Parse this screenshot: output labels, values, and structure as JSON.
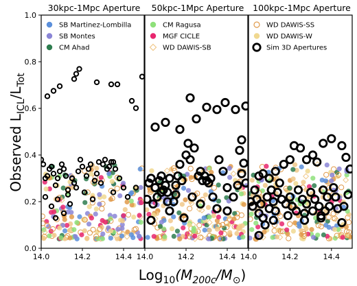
{
  "chart_data": {
    "type": "scatter",
    "ylabel_main": "Observed L",
    "ylabel_sub": "ICL",
    "ylabel_mid": "/L",
    "ylabel_sub2": "Tot",
    "xlabel_prefix": "Log",
    "xlabel_sub": "10",
    "xlabel_body": "(M",
    "xlabel_sub2": "200c",
    "xlabel_mid": "/M",
    "xlabel_sub3": "⊙",
    "xlabel_suffix": ")",
    "ylim": [
      0.0,
      1.0
    ],
    "xlim": [
      14.0,
      14.5
    ],
    "yticks": [
      "0.0",
      "0.2",
      "0.4",
      "0.6",
      "0.8",
      "1.0"
    ],
    "xticks": [
      "14.0",
      "14.2",
      "14.4"
    ],
    "grid": false,
    "panels": [
      {
        "title": "30kpc-1Mpc Aperture",
        "legend": [
          {
            "name": "SB Martinez-Lombilla",
            "color": "#5b8fdb",
            "marker": "filled"
          },
          {
            "name": "SB Montes",
            "color": "#8a85d6",
            "marker": "filled"
          },
          {
            "name": "CM Ahad",
            "color": "#2e7d4f",
            "marker": "filled"
          }
        ],
        "sim": [
          [
            14.03,
            0.652
          ],
          [
            14.06,
            0.675
          ],
          [
            14.09,
            0.695
          ],
          [
            14.16,
            0.726
          ],
          [
            14.17,
            0.748
          ],
          [
            14.185,
            0.769
          ],
          [
            14.27,
            0.712
          ],
          [
            14.34,
            0.703
          ],
          [
            14.37,
            0.703
          ],
          [
            14.44,
            0.632
          ],
          [
            14.46,
            0.601
          ],
          [
            14.49,
            0.736
          ],
          [
            14.0,
            0.38
          ],
          [
            14.01,
            0.36
          ],
          [
            14.02,
            0.3
          ],
          [
            14.03,
            0.31
          ],
          [
            14.04,
            0.34
          ],
          [
            14.05,
            0.35
          ],
          [
            14.06,
            0.32
          ],
          [
            14.07,
            0.27
          ],
          [
            14.08,
            0.3
          ],
          [
            14.09,
            0.33
          ],
          [
            14.1,
            0.36
          ],
          [
            14.11,
            0.34
          ],
          [
            14.12,
            0.31
          ],
          [
            14.13,
            0.25
          ],
          [
            14.15,
            0.3
          ],
          [
            14.16,
            0.28
          ],
          [
            14.18,
            0.33
          ],
          [
            14.19,
            0.38
          ],
          [
            14.2,
            0.35
          ],
          [
            14.22,
            0.31
          ],
          [
            14.23,
            0.34
          ],
          [
            14.24,
            0.36
          ],
          [
            14.26,
            0.29
          ],
          [
            14.27,
            0.32
          ],
          [
            14.28,
            0.37
          ],
          [
            14.3,
            0.36
          ],
          [
            14.31,
            0.38
          ],
          [
            14.32,
            0.34
          ],
          [
            14.33,
            0.35
          ],
          [
            14.34,
            0.37
          ],
          [
            14.35,
            0.37
          ],
          [
            14.36,
            0.34
          ],
          [
            14.38,
            0.3
          ],
          [
            14.4,
            0.26
          ],
          [
            14.02,
            0.22
          ],
          [
            14.05,
            0.18
          ],
          [
            14.08,
            0.21
          ],
          [
            14.11,
            0.15
          ],
          [
            14.14,
            0.19
          ],
          [
            14.17,
            0.26
          ],
          [
            14.21,
            0.24
          ],
          [
            14.25,
            0.21
          ],
          [
            14.29,
            0.28
          ],
          [
            14.35,
            0.24
          ],
          [
            14.42,
            0.22
          ],
          [
            14.46,
            0.26
          ],
          [
            14.13,
            0.23
          ],
          [
            14.07,
            0.13
          ]
        ],
        "sim_small": true
      },
      {
        "title": "50kpc-1Mpc Aperture",
        "legend": [
          {
            "name": "CM Ragusa",
            "color": "#8ee07a",
            "marker": "filled"
          },
          {
            "name": "MGF CICLE",
            "color": "#e8266e",
            "marker": "filled"
          },
          {
            "name": "WD DAWIS-SB",
            "color": "#f0c88a",
            "marker": "diamond"
          }
        ],
        "sim": [
          [
            14.05,
            0.52
          ],
          [
            14.1,
            0.54
          ],
          [
            14.17,
            0.51
          ],
          [
            14.22,
            0.645
          ],
          [
            14.25,
            0.555
          ],
          [
            14.3,
            0.605
          ],
          [
            14.35,
            0.595
          ],
          [
            14.39,
            0.625
          ],
          [
            14.44,
            0.595
          ],
          [
            14.47,
            0.465
          ],
          [
            14.49,
            0.61
          ],
          [
            14.48,
            0.365
          ],
          [
            14.02,
            0.28
          ],
          [
            14.03,
            0.3
          ],
          [
            14.05,
            0.26
          ],
          [
            14.06,
            0.22
          ],
          [
            14.07,
            0.29
          ],
          [
            14.08,
            0.31
          ],
          [
            14.09,
            0.25
          ],
          [
            14.1,
            0.27
          ],
          [
            14.11,
            0.24
          ],
          [
            14.12,
            0.3
          ],
          [
            14.14,
            0.2
          ],
          [
            14.15,
            0.27
          ],
          [
            14.16,
            0.31
          ],
          [
            14.17,
            0.36
          ],
          [
            14.18,
            0.29
          ],
          [
            14.2,
            0.4
          ],
          [
            14.21,
            0.45
          ],
          [
            14.22,
            0.38
          ],
          [
            14.24,
            0.43
          ],
          [
            14.26,
            0.31
          ],
          [
            14.27,
            0.33
          ],
          [
            14.28,
            0.29
          ],
          [
            14.29,
            0.31
          ],
          [
            14.3,
            0.29
          ],
          [
            14.31,
            0.28
          ],
          [
            14.32,
            0.3
          ],
          [
            14.36,
            0.38
          ],
          [
            14.38,
            0.33
          ],
          [
            14.4,
            0.26
          ],
          [
            14.43,
            0.22
          ],
          [
            14.46,
            0.42
          ],
          [
            14.47,
            0.32
          ],
          [
            14.01,
            0.21
          ],
          [
            14.04,
            0.19
          ],
          [
            14.08,
            0.24
          ],
          [
            14.12,
            0.16
          ],
          [
            14.15,
            0.23
          ],
          [
            14.19,
            0.13
          ],
          [
            14.23,
            0.22
          ],
          [
            14.27,
            0.19
          ],
          [
            14.33,
            0.22
          ],
          [
            14.4,
            0.16
          ],
          [
            14.03,
            0.12
          ],
          [
            14.11,
            0.2
          ],
          [
            14.35,
            0.17
          ],
          [
            14.45,
            0.27
          ],
          [
            14.49,
            0.28
          ]
        ],
        "sim_small": false
      },
      {
        "title": "100kpc-1Mpc Aperture",
        "legend": [
          {
            "name": "WD DAWIS-SS",
            "color": "#e09a4a",
            "marker": "open"
          },
          {
            "name": "WD DAWIS-W",
            "color": "#f0d890",
            "marker": "filled"
          },
          {
            "name": "Sim 3D Apertures",
            "color": "#000000",
            "marker": "open-black"
          }
        ],
        "sim": [
          [
            14.05,
            0.31
          ],
          [
            14.07,
            0.32
          ],
          [
            14.1,
            0.3
          ],
          [
            14.13,
            0.33
          ],
          [
            14.15,
            0.28
          ],
          [
            14.17,
            0.36
          ],
          [
            14.2,
            0.38
          ],
          [
            14.22,
            0.44
          ],
          [
            14.25,
            0.43
          ],
          [
            14.28,
            0.38
          ],
          [
            14.31,
            0.4
          ],
          [
            14.33,
            0.37
          ],
          [
            14.36,
            0.45
          ],
          [
            14.4,
            0.47
          ],
          [
            14.45,
            0.44
          ],
          [
            14.47,
            0.39
          ],
          [
            14.49,
            0.34
          ],
          [
            14.01,
            0.2
          ],
          [
            14.02,
            0.18
          ],
          [
            14.03,
            0.25
          ],
          [
            14.04,
            0.21
          ],
          [
            14.05,
            0.15
          ],
          [
            14.06,
            0.19
          ],
          [
            14.07,
            0.13
          ],
          [
            14.08,
            0.1
          ],
          [
            14.09,
            0.22
          ],
          [
            14.1,
            0.17
          ],
          [
            14.11,
            0.25
          ],
          [
            14.12,
            0.2
          ],
          [
            14.13,
            0.16
          ],
          [
            14.14,
            0.24
          ],
          [
            14.16,
            0.21
          ],
          [
            14.18,
            0.19
          ],
          [
            14.19,
            0.14
          ],
          [
            14.2,
            0.22
          ],
          [
            14.21,
            0.18
          ],
          [
            14.23,
            0.16
          ],
          [
            14.24,
            0.25
          ],
          [
            14.26,
            0.21
          ],
          [
            14.27,
            0.15
          ],
          [
            14.28,
            0.19
          ],
          [
            14.3,
            0.24
          ],
          [
            14.31,
            0.16
          ],
          [
            14.32,
            0.21
          ],
          [
            14.34,
            0.18
          ],
          [
            14.35,
            0.13
          ],
          [
            14.36,
            0.25
          ],
          [
            14.37,
            0.16
          ],
          [
            14.38,
            0.22
          ],
          [
            14.39,
            0.18
          ],
          [
            14.41,
            0.26
          ],
          [
            14.42,
            0.22
          ],
          [
            14.43,
            0.17
          ],
          [
            14.45,
            0.11
          ],
          [
            14.46,
            0.18
          ],
          [
            14.48,
            0.23
          ],
          [
            14.05,
            0.055
          ],
          [
            14.12,
            0.12
          ],
          [
            14.27,
            0.12
          ],
          [
            14.35,
            0.14
          ]
        ],
        "sim_small": false
      }
    ],
    "observed_colors": [
      "#f0d890",
      "#e09a4a",
      "#8ee07a",
      "#e8266e",
      "#5b8fdb",
      "#8a85d6",
      "#2e7d4f",
      "#f0c88a"
    ],
    "observed_y_range": [
      0.04,
      0.36
    ]
  }
}
